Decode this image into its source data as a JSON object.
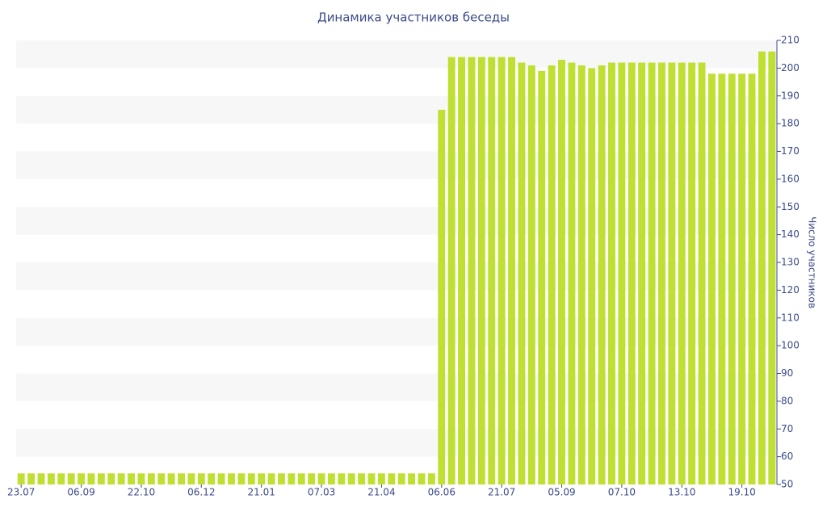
{
  "chart_data": {
    "type": "bar",
    "title": "Динамика участников беседы",
    "y_label": "Число участников",
    "categories": [
      "23.07",
      null,
      null,
      null,
      null,
      null,
      "06.09",
      null,
      null,
      null,
      null,
      null,
      "22.10",
      null,
      null,
      null,
      null,
      null,
      "06.12",
      null,
      null,
      null,
      null,
      null,
      "21.01",
      null,
      null,
      null,
      null,
      null,
      "07.03",
      null,
      null,
      null,
      null,
      null,
      "21.04",
      null,
      null,
      null,
      null,
      null,
      "06.06",
      null,
      null,
      null,
      null,
      null,
      "21.07",
      null,
      null,
      null,
      null,
      null,
      "05.09",
      null,
      null,
      null,
      null,
      null,
      "07.10",
      null,
      null,
      null,
      null,
      null,
      "13.10",
      null,
      null,
      null,
      null,
      null,
      "19.10",
      null,
      null,
      null
    ],
    "values": [
      54,
      54,
      54,
      54,
      54,
      54,
      54,
      54,
      54,
      54,
      54,
      54,
      54,
      54,
      54,
      54,
      54,
      54,
      54,
      54,
      54,
      54,
      54,
      54,
      54,
      54,
      54,
      54,
      54,
      54,
      54,
      54,
      54,
      54,
      54,
      54,
      54,
      54,
      54,
      54,
      54,
      54,
      185,
      204,
      204,
      204,
      204,
      204,
      204,
      204,
      202,
      201,
      199,
      201,
      203,
      202,
      201,
      200,
      201,
      202,
      202,
      202,
      202,
      202,
      202,
      202,
      202,
      202,
      202,
      198,
      198,
      198,
      198,
      198,
      206,
      206
    ],
    "color": "#bfe032",
    "ylim": [
      50,
      210
    ],
    "yticks": [
      50,
      60,
      70,
      80,
      90,
      100,
      110,
      120,
      130,
      140,
      150,
      160,
      170,
      180,
      190,
      200,
      210
    ],
    "grid": "bands",
    "y_axis_side": "right"
  }
}
